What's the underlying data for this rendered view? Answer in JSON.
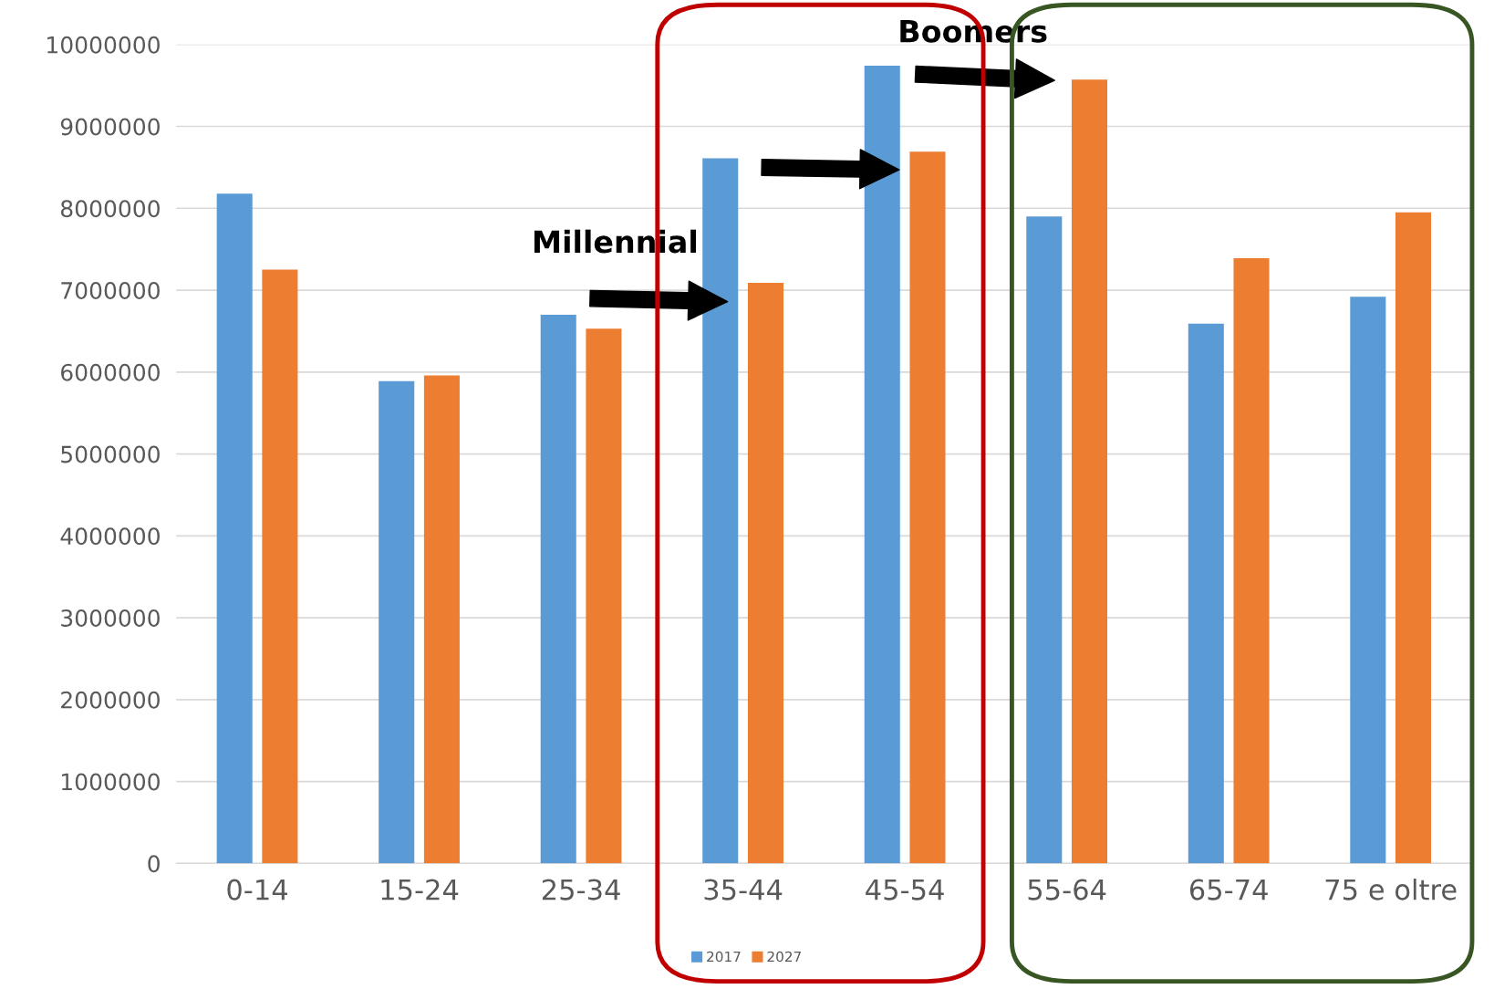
{
  "chart_data": {
    "type": "bar",
    "categories": [
      "0-14",
      "15-24",
      "25-34",
      "35-44",
      "45-54",
      "55-64",
      "65-74",
      "75 e oltre"
    ],
    "series": [
      {
        "name": "2017",
        "color": "#5b9bd5",
        "values": [
          8180000,
          5890000,
          6700000,
          8610000,
          9740000,
          7900000,
          6590000,
          6920000
        ]
      },
      {
        "name": "2027",
        "color": "#ed7d31",
        "values": [
          7250000,
          5960000,
          6530000,
          7090000,
          8690000,
          9570000,
          7390000,
          7950000
        ]
      }
    ],
    "ylim": [
      0,
      10000000
    ],
    "yticks": [
      0,
      1000000,
      2000000,
      3000000,
      4000000,
      5000000,
      6000000,
      7000000,
      8000000,
      9000000,
      10000000
    ],
    "grid": "y",
    "legend": "bottom",
    "annotations": [
      "Millennial",
      "Boomers"
    ]
  }
}
